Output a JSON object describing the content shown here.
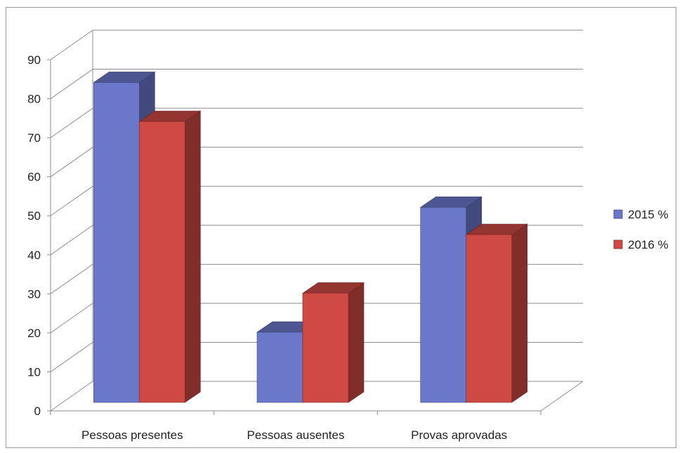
{
  "chart_data": {
    "type": "bar",
    "style": "3d-clustered-column",
    "categories": [
      "Pessoas presentes",
      "Pessoas ausentes",
      "Provas aprovadas"
    ],
    "series": [
      {
        "name": "2015 %",
        "values": [
          82,
          18,
          50
        ],
        "color": "#6b78c9"
      },
      {
        "name": "2016 %",
        "values": [
          72,
          28,
          43
        ],
        "color": "#cf4a44"
      }
    ],
    "yticks": [
      0,
      10,
      20,
      30,
      40,
      50,
      60,
      70,
      80,
      90
    ],
    "ylim": [
      0,
      90
    ],
    "grid": true,
    "legend": "right",
    "title": "",
    "xlabel": "",
    "ylabel": ""
  }
}
